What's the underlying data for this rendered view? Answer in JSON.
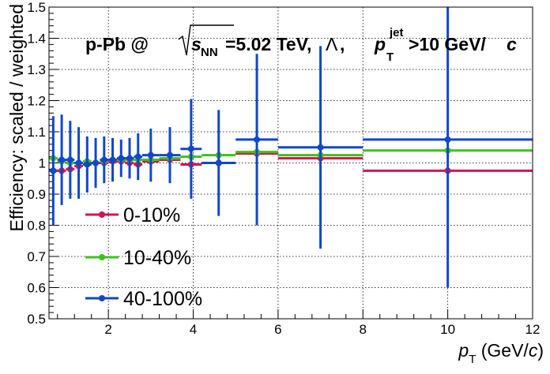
{
  "chart_data": {
    "type": "scatter",
    "title": "p-Pb @ √s_NN=5.02 TeV, Λ, p_T^jet>10 GeV/c",
    "title_parts": {
      "prefix": "p-Pb @ ",
      "sqrt_symbol": "√",
      "s": "s",
      "nn": "NN",
      "energy": "=5.02 TeV, ",
      "lambda": "Λ",
      "comma": ", ",
      "p": "p",
      "T": "T",
      "jet": "jet",
      "cut": ">10 GeV/",
      "c": "c"
    },
    "xlabel": "p_T (GeV/c)",
    "xlabel_parts": {
      "p": "p",
      "T": "T",
      "open": " (GeV/",
      "c": "c",
      "close": ")"
    },
    "ylabel": "Efficiency: scaled / weighted",
    "xlim": [
      0.6,
      12
    ],
    "ylim": [
      0.5,
      1.5
    ],
    "xticks": [
      2,
      4,
      6,
      8,
      10,
      12
    ],
    "xtick_labels": [
      "2",
      "4",
      "6",
      "8",
      "10",
      "12"
    ],
    "yticks": [
      0.5,
      0.6,
      0.7,
      0.8,
      0.9,
      1.0,
      1.1,
      1.2,
      1.3,
      1.4,
      1.5
    ],
    "ytick_labels": [
      "0.5",
      "0.6",
      "0.7",
      "0.8",
      "0.9",
      "1",
      "1.1",
      "1.2",
      "1.3",
      "1.4",
      "1.5"
    ],
    "grid": true,
    "legend_position": "bottom-left",
    "series": [
      {
        "name": "0-10%",
        "color": "#d4154f",
        "points": [
          {
            "x": 0.7,
            "xlo": 0.6,
            "xhi": 0.8,
            "y": 0.975,
            "err": 0
          },
          {
            "x": 0.9,
            "xlo": 0.8,
            "xhi": 1.0,
            "y": 0.975,
            "err": 0
          },
          {
            "x": 1.1,
            "xlo": 1.0,
            "xhi": 1.2,
            "y": 0.98,
            "err": 0
          },
          {
            "x": 1.3,
            "xlo": 1.2,
            "xhi": 1.4,
            "y": 0.99,
            "err": 0
          },
          {
            "x": 1.5,
            "xlo": 1.4,
            "xhi": 1.6,
            "y": 0.995,
            "err": 0
          },
          {
            "x": 1.7,
            "xlo": 1.6,
            "xhi": 1.8,
            "y": 1.0,
            "err": 0
          },
          {
            "x": 1.9,
            "xlo": 1.8,
            "xhi": 2.0,
            "y": 1.0,
            "err": 0
          },
          {
            "x": 2.1,
            "xlo": 2.0,
            "xhi": 2.2,
            "y": 1.005,
            "err": 0
          },
          {
            "x": 2.3,
            "xlo": 2.2,
            "xhi": 2.4,
            "y": 1.005,
            "err": 0
          },
          {
            "x": 2.5,
            "xlo": 2.4,
            "xhi": 2.6,
            "y": 1.0,
            "err": 0
          },
          {
            "x": 2.7,
            "xlo": 2.6,
            "xhi": 2.8,
            "y": 0.995,
            "err": 0
          },
          {
            "x": 3.0,
            "xlo": 2.8,
            "xhi": 3.2,
            "y": 1.005,
            "err": 0
          },
          {
            "x": 3.45,
            "xlo": 3.2,
            "xhi": 3.7,
            "y": 1.01,
            "err": 0
          },
          {
            "x": 3.95,
            "xlo": 3.7,
            "xhi": 4.2,
            "y": 0.995,
            "err": 0
          },
          {
            "x": 4.6,
            "xlo": 4.2,
            "xhi": 5.0,
            "y": 1.0,
            "err": 0
          },
          {
            "x": 5.5,
            "xlo": 5.0,
            "xhi": 6.0,
            "y": 1.03,
            "err": 0
          },
          {
            "x": 7.0,
            "xlo": 6.0,
            "xhi": 8.0,
            "y": 1.015,
            "err": 0
          },
          {
            "x": 10.0,
            "xlo": 8.0,
            "xhi": 12.0,
            "y": 0.975,
            "err": 0
          }
        ]
      },
      {
        "name": "10-40%",
        "color": "#3cc21c",
        "points": [
          {
            "x": 0.7,
            "xlo": 0.6,
            "xhi": 0.8,
            "y": 1.015,
            "err": 0
          },
          {
            "x": 0.9,
            "xlo": 0.8,
            "xhi": 1.0,
            "y": 1.005,
            "err": 0
          },
          {
            "x": 1.1,
            "xlo": 1.0,
            "xhi": 1.2,
            "y": 1.0,
            "err": 0
          },
          {
            "x": 1.3,
            "xlo": 1.2,
            "xhi": 1.4,
            "y": 1.0,
            "err": 0
          },
          {
            "x": 1.5,
            "xlo": 1.4,
            "xhi": 1.6,
            "y": 1.005,
            "err": 0
          },
          {
            "x": 1.7,
            "xlo": 1.6,
            "xhi": 1.8,
            "y": 1.0,
            "err": 0
          },
          {
            "x": 1.9,
            "xlo": 1.8,
            "xhi": 2.0,
            "y": 1.005,
            "err": 0
          },
          {
            "x": 2.1,
            "xlo": 2.0,
            "xhi": 2.2,
            "y": 1.01,
            "err": 0
          },
          {
            "x": 2.3,
            "xlo": 2.2,
            "xhi": 2.4,
            "y": 1.01,
            "err": 0
          },
          {
            "x": 2.5,
            "xlo": 2.4,
            "xhi": 2.6,
            "y": 1.01,
            "err": 0
          },
          {
            "x": 2.7,
            "xlo": 2.6,
            "xhi": 2.8,
            "y": 1.01,
            "err": 0
          },
          {
            "x": 3.0,
            "xlo": 2.8,
            "xhi": 3.2,
            "y": 1.01,
            "err": 0
          },
          {
            "x": 3.45,
            "xlo": 3.2,
            "xhi": 3.7,
            "y": 1.015,
            "err": 0
          },
          {
            "x": 3.95,
            "xlo": 3.7,
            "xhi": 4.2,
            "y": 1.02,
            "err": 0
          },
          {
            "x": 4.6,
            "xlo": 4.2,
            "xhi": 5.0,
            "y": 1.025,
            "err": 0
          },
          {
            "x": 5.5,
            "xlo": 5.0,
            "xhi": 6.0,
            "y": 1.035,
            "err": 0
          },
          {
            "x": 7.0,
            "xlo": 6.0,
            "xhi": 8.0,
            "y": 1.025,
            "err": 0
          },
          {
            "x": 10.0,
            "xlo": 8.0,
            "xhi": 12.0,
            "y": 1.04,
            "err": 0
          }
        ]
      },
      {
        "name": "40-100%",
        "color": "#1147c8",
        "points": [
          {
            "x": 0.7,
            "xlo": 0.6,
            "xhi": 0.8,
            "y": 0.975,
            "err": 0.175
          },
          {
            "x": 0.9,
            "xlo": 0.8,
            "xhi": 1.0,
            "y": 1.01,
            "err": 0.145
          },
          {
            "x": 1.1,
            "xlo": 1.0,
            "xhi": 1.2,
            "y": 1.01,
            "err": 0.125
          },
          {
            "x": 1.3,
            "xlo": 1.2,
            "xhi": 1.4,
            "y": 1.0,
            "err": 0.115
          },
          {
            "x": 1.5,
            "xlo": 1.4,
            "xhi": 1.6,
            "y": 0.995,
            "err": 0.09
          },
          {
            "x": 1.7,
            "xlo": 1.6,
            "xhi": 1.8,
            "y": 1.0,
            "err": 0.08
          },
          {
            "x": 1.9,
            "xlo": 1.8,
            "xhi": 2.0,
            "y": 1.01,
            "err": 0.075
          },
          {
            "x": 2.1,
            "xlo": 2.0,
            "xhi": 2.2,
            "y": 1.01,
            "err": 0.07
          },
          {
            "x": 2.3,
            "xlo": 2.2,
            "xhi": 2.4,
            "y": 1.015,
            "err": 0.06
          },
          {
            "x": 2.5,
            "xlo": 2.4,
            "xhi": 2.6,
            "y": 1.015,
            "err": 0.065
          },
          {
            "x": 2.7,
            "xlo": 2.6,
            "xhi": 2.8,
            "y": 1.02,
            "err": 0.075
          },
          {
            "x": 3.0,
            "xlo": 2.8,
            "xhi": 3.2,
            "y": 1.025,
            "err": 0.085
          },
          {
            "x": 3.45,
            "xlo": 3.2,
            "xhi": 3.7,
            "y": 1.025,
            "err": 0.09
          },
          {
            "x": 3.95,
            "xlo": 3.7,
            "xhi": 4.2,
            "y": 1.045,
            "err": 0.16
          },
          {
            "x": 4.6,
            "xlo": 4.2,
            "xhi": 5.0,
            "y": 1.0,
            "err": 0.17
          },
          {
            "x": 5.5,
            "xlo": 5.0,
            "xhi": 6.0,
            "y": 1.075,
            "err": 0.275
          },
          {
            "x": 7.0,
            "xlo": 6.0,
            "xhi": 8.0,
            "y": 1.05,
            "err": 0.325
          },
          {
            "x": 10.0,
            "xlo": 8.0,
            "xhi": 12.0,
            "y": 1.075,
            "err": 0.475
          }
        ]
      }
    ]
  }
}
